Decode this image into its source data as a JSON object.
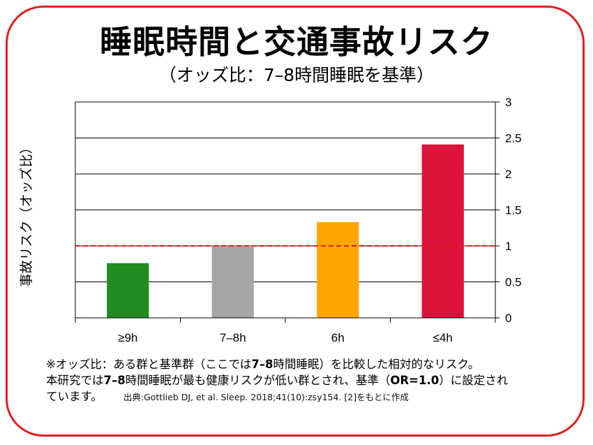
{
  "title": "睡眠時間と交通事故リスク",
  "subtitle": "（オッズ比：7–8時間睡眠を基準）",
  "footnote": {
    "part1": "※オッズ比：ある群と基準群（ここでは",
    "bold1": "7–8",
    "part2": "時間睡眠）を比較した相対的なリスク。",
    "part3": "本研究では",
    "bold2": "7–8",
    "part4": "時間睡眠が最も健康リスクが低い群とされ、基準（",
    "bold3": "OR=1.0",
    "part5": "）に設定され",
    "part6": "ています。",
    "source": "出典:Gottlieb DJ, et al. Sleep. 2018;41(10):zsy154. [2]をもとに作成"
  },
  "colors": {
    "frame": "#e02020",
    "reference_line": "#e02020",
    "grid": "#000000"
  },
  "chart_data": {
    "type": "bar",
    "title": "睡眠時間と交通事故リスク",
    "subtitle": "（オッズ比：7–8時間睡眠を基準）",
    "xlabel": "",
    "ylabel": "事故リスク（オッズ比）",
    "categories": [
      "≥9h",
      "7–8h",
      "6h",
      "≤4h"
    ],
    "values": [
      0.76,
      1.0,
      1.33,
      2.41
    ],
    "bar_colors": [
      "#228b22",
      "#a6a6a6",
      "#ffa500",
      "#dc143c"
    ],
    "ylim": [
      0,
      3
    ],
    "yticks": [
      0,
      0.5,
      1,
      1.5,
      2,
      2.5,
      3
    ],
    "ytick_labels": [
      "0",
      "0.5",
      "1",
      "1.5",
      "2",
      "2.5",
      "3"
    ],
    "y_axis_side": "right",
    "grid": true,
    "reference_line": {
      "value": 1.0,
      "style": "dashed",
      "color": "#e02020"
    }
  }
}
